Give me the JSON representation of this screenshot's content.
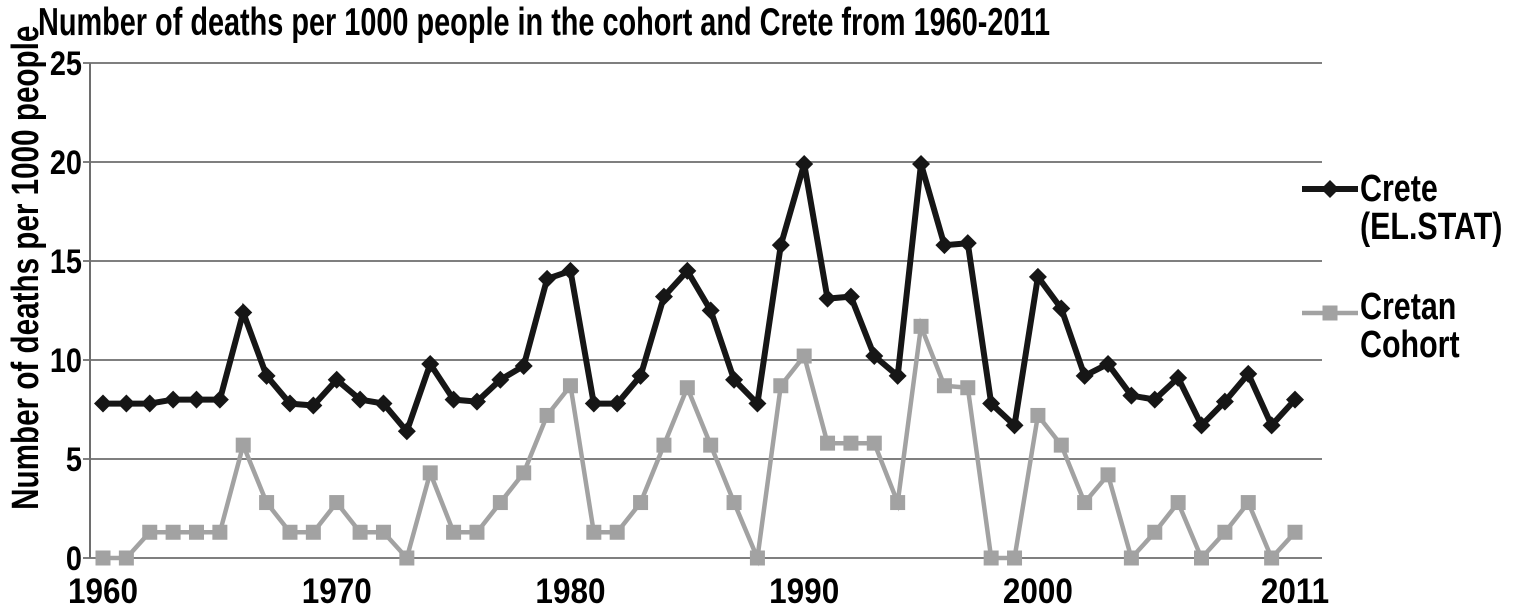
{
  "chart_data": {
    "type": "line",
    "title": "Number of deaths per 1000 people in the cohort and Crete from 1960-2011",
    "ylabel": "Number of deaths per 1000 people",
    "xlabel": "",
    "ylim": [
      0,
      25
    ],
    "yticks": [
      0,
      5,
      10,
      15,
      20,
      25
    ],
    "xticks": [
      1960,
      1970,
      1980,
      1990,
      2000,
      2011
    ],
    "grid": true,
    "legend_position": "right",
    "x": [
      1960,
      1961,
      1962,
      1963,
      1964,
      1965,
      1966,
      1967,
      1968,
      1969,
      1970,
      1971,
      1972,
      1973,
      1974,
      1975,
      1976,
      1977,
      1978,
      1979,
      1980,
      1981,
      1982,
      1983,
      1984,
      1985,
      1986,
      1987,
      1988,
      1989,
      1990,
      1991,
      1992,
      1993,
      1994,
      1995,
      1996,
      1997,
      1998,
      1999,
      2000,
      2001,
      2002,
      2003,
      2004,
      2005,
      2006,
      2007,
      2008,
      2009,
      2010,
      2011
    ],
    "series": [
      {
        "name": "Crete (EL.STAT)",
        "marker": "diamond",
        "color": "#161616",
        "values": [
          7.8,
          7.8,
          7.8,
          8.0,
          8.0,
          8.0,
          12.4,
          9.2,
          7.8,
          7.7,
          9.0,
          8.0,
          7.8,
          6.4,
          9.8,
          8.0,
          7.9,
          9.0,
          9.7,
          14.1,
          14.5,
          7.8,
          7.8,
          9.2,
          13.2,
          14.5,
          12.5,
          9.0,
          7.8,
          15.8,
          19.9,
          13.1,
          13.2,
          10.2,
          9.2,
          19.9,
          15.8,
          15.9,
          7.8,
          6.7,
          14.2,
          12.6,
          9.2,
          9.8,
          8.2,
          8.0,
          9.1,
          6.7,
          7.9,
          9.3,
          6.7,
          8.0
        ]
      },
      {
        "name": "Cretan Cohort",
        "marker": "square",
        "color": "#a2a2a2",
        "values": [
          0,
          0,
          1.3,
          1.3,
          1.3,
          1.3,
          5.7,
          2.8,
          1.3,
          1.3,
          2.8,
          1.3,
          1.3,
          0,
          4.3,
          1.3,
          1.3,
          2.8,
          4.3,
          7.2,
          8.7,
          1.3,
          1.3,
          2.8,
          5.7,
          8.6,
          5.7,
          2.8,
          0,
          8.7,
          10.2,
          5.8,
          5.8,
          5.8,
          2.8,
          11.7,
          8.7,
          8.6,
          0,
          0,
          7.2,
          5.7,
          2.8,
          4.2,
          0,
          1.3,
          2.8,
          0,
          1.3,
          2.8,
          0,
          1.3
        ]
      }
    ]
  },
  "legend": {
    "items": [
      {
        "line1": "Crete",
        "line2": "(EL.STAT)"
      },
      {
        "line1": "Cretan",
        "line2": "Cohort"
      }
    ]
  },
  "colors": {
    "grid": "#7f7f7f",
    "axis": "#6e6e6e",
    "text": "#000000",
    "background": "#ffffff"
  }
}
